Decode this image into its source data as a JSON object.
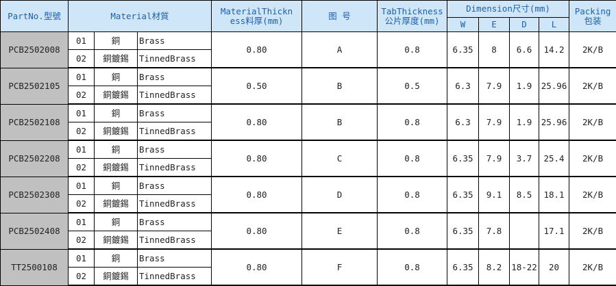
{
  "header": {
    "partno": "PartNo.型號",
    "material": "Material材質",
    "thickness": [
      "MaterialThickn",
      "ess料厚(mm)"
    ],
    "drawing": "图 号",
    "tab": [
      "TabThickness",
      "公片厚度(mm)"
    ],
    "dimension": "Dimension尺寸(mm)",
    "w": "W",
    "e": "E",
    "d": "D",
    "l": "L",
    "packing": [
      "Packing",
      "包装"
    ]
  },
  "rows": [
    {
      "part": "PCB2502008",
      "materials": [
        {
          "code": "01",
          "cn": "銅",
          "en": "Brass"
        },
        {
          "code": "02",
          "cn": "銅鍍錫",
          "en": "TinnedBrass"
        }
      ],
      "thickness": "0.80",
      "drawing": "A",
      "tab": "0.8",
      "w": "6.35",
      "e": "8",
      "d": "6.6",
      "l": "14.2",
      "packing": "2K/B"
    },
    {
      "part": "PCB2502105",
      "materials": [
        {
          "code": "01",
          "cn": "銅",
          "en": "Brass"
        },
        {
          "code": "02",
          "cn": "銅鍍錫",
          "en": "TinnedBrass"
        }
      ],
      "thickness": "0.50",
      "drawing": "B",
      "tab": "0.5",
      "w": "6.3",
      "e": "7.9",
      "d": "1.9",
      "l": "25.96",
      "packing": "2K/B"
    },
    {
      "part": "PCB2502108",
      "materials": [
        {
          "code": "01",
          "cn": "銅",
          "en": "Brass"
        },
        {
          "code": "02",
          "cn": "銅鍍錫",
          "en": "TinnedBrass"
        }
      ],
      "thickness": "0.80",
      "drawing": "B",
      "tab": "0.8",
      "w": "6.3",
      "e": "7.9",
      "d": "1.9",
      "l": "25.96",
      "packing": "2K/B"
    },
    {
      "part": "PCB2502208",
      "materials": [
        {
          "code": "01",
          "cn": "銅",
          "en": "Brass"
        },
        {
          "code": "02",
          "cn": "銅鍍錫",
          "en": "TinnedBrass"
        }
      ],
      "thickness": "0.80",
      "drawing": "C",
      "tab": "0.8",
      "w": "6.35",
      "e": "7.9",
      "d": "3.7",
      "l": "25.4",
      "packing": "2K/B"
    },
    {
      "part": "PCB2502308",
      "materials": [
        {
          "code": "01",
          "cn": "銅",
          "en": "Brass"
        },
        {
          "code": "02",
          "cn": "銅鍍錫",
          "en": "TinnedBrass"
        }
      ],
      "thickness": "0.80",
      "drawing": "D",
      "tab": "0.8",
      "w": "6.35",
      "e": "9.1",
      "d": "8.5",
      "l": "18.1",
      "packing": "2K/B"
    },
    {
      "part": "PCB2502408",
      "materials": [
        {
          "code": "01",
          "cn": "銅",
          "en": "Brass"
        },
        {
          "code": "02",
          "cn": "銅鍍錫",
          "en": "TinnedBrass"
        }
      ],
      "thickness": "0.80",
      "drawing": "E",
      "tab": "0.8",
      "w": "6.35",
      "e": "7.8",
      "d": null,
      "l": "17.1",
      "packing": "2K/B"
    },
    {
      "part": "TT2500108",
      "materials": [
        {
          "code": "01",
          "cn": "銅",
          "en": "Brass"
        },
        {
          "code": "02",
          "cn": "銅鍍錫",
          "en": "TinnedBrass"
        }
      ],
      "thickness": "0.80",
      "drawing": "F",
      "tab": "0.8",
      "w": "6.35",
      "e": "8.2",
      "d": "18-22",
      "l": "20",
      "packing": "2K/B"
    }
  ]
}
